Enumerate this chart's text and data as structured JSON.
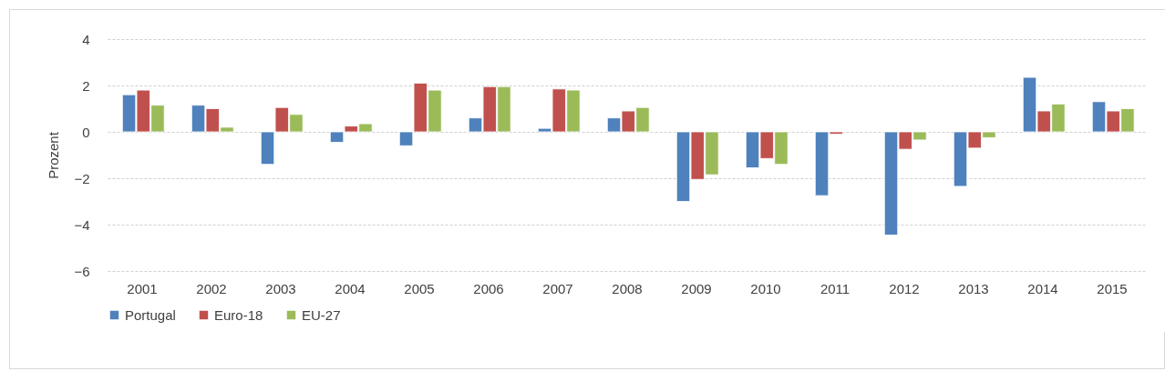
{
  "chart_data": {
    "type": "bar",
    "ylabel": "Prozent",
    "categories": [
      "2001",
      "2002",
      "2003",
      "2004",
      "2005",
      "2006",
      "2007",
      "2008",
      "2009",
      "2010",
      "2011",
      "2012",
      "2013",
      "2014",
      "2015"
    ],
    "series": [
      {
        "name": "Portugal",
        "color": "#4f81bd",
        "values": [
          1.6,
          1.15,
          -1.4,
          -0.45,
          -0.6,
          0.6,
          0.15,
          0.6,
          -3.0,
          -1.55,
          -2.75,
          -4.45,
          -2.35,
          2.35,
          1.3
        ]
      },
      {
        "name": "Euro-18",
        "color": "#c0504d",
        "values": [
          1.8,
          1.0,
          1.05,
          0.25,
          2.1,
          1.95,
          1.85,
          0.9,
          -2.05,
          -1.15,
          -0.1,
          -0.75,
          -0.7,
          0.9,
          0.9
        ]
      },
      {
        "name": "EU-27",
        "color": "#9bbb59",
        "values": [
          1.15,
          0.2,
          0.75,
          0.35,
          1.8,
          1.95,
          1.8,
          1.05,
          -1.85,
          -1.4,
          null,
          -0.35,
          -0.25,
          1.2,
          1.0
        ]
      }
    ],
    "ylim": [
      -6,
      4
    ],
    "yticks": [
      -6,
      -4,
      -2,
      0,
      2,
      4
    ],
    "grid": "y",
    "legend": "bottom"
  }
}
